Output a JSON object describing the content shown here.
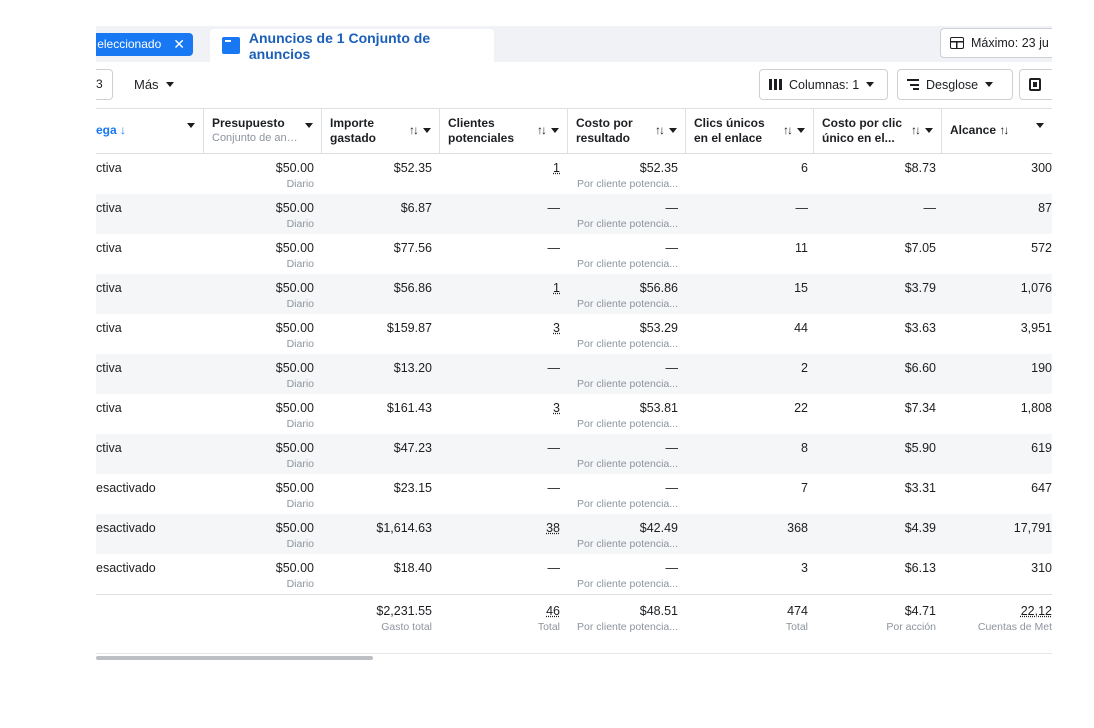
{
  "tabs": {
    "selected_label": "eleccionado",
    "ads_label": "Anuncios de 1 Conjunto de anuncios",
    "max_label": "Máximo: 23 ju"
  },
  "toolbar": {
    "num_fragment": "3",
    "more_label": "Más",
    "columns_label": "Columnas: 1",
    "breakdown_label": "Desglose"
  },
  "columns": {
    "delivery": "ega",
    "budget": "Presupuesto",
    "budget_sub": "Conjunto de anunci...",
    "spent_line1": "Importe",
    "spent_line2": "gastado",
    "leads_line1": "Clientes",
    "leads_line2": "potenciales",
    "cpr_line1": "Costo por",
    "cpr_line2": "resultado",
    "clicks_line1": "Clics únicos",
    "clicks_line2": "en el enlace",
    "cpc_line1": "Costo por clic",
    "cpc_line2": "único en el...",
    "reach": "Alcance"
  },
  "rows": [
    {
      "delivery": "ctiva",
      "budget": "$50.00",
      "budget_sub": "Diario",
      "spent": "$52.35",
      "leads": "1",
      "cpr": "$52.35",
      "cpr_sub": "Por cliente potencia...",
      "clicks": "6",
      "cpc": "$8.73",
      "reach": "300"
    },
    {
      "delivery": "ctiva",
      "budget": "$50.00",
      "budget_sub": "Diario",
      "spent": "$6.87",
      "leads": "—",
      "cpr": "—",
      "cpr_sub": "Por cliente potencia...",
      "clicks": "—",
      "cpc": "—",
      "reach": "87"
    },
    {
      "delivery": "ctiva",
      "budget": "$50.00",
      "budget_sub": "Diario",
      "spent": "$77.56",
      "leads": "—",
      "cpr": "—",
      "cpr_sub": "Por cliente potencia...",
      "clicks": "11",
      "cpc": "$7.05",
      "reach": "572"
    },
    {
      "delivery": "ctiva",
      "budget": "$50.00",
      "budget_sub": "Diario",
      "spent": "$56.86",
      "leads": "1",
      "cpr": "$56.86",
      "cpr_sub": "Por cliente potencia...",
      "clicks": "15",
      "cpc": "$3.79",
      "reach": "1,076"
    },
    {
      "delivery": "ctiva",
      "budget": "$50.00",
      "budget_sub": "Diario",
      "spent": "$159.87",
      "leads": "3",
      "cpr": "$53.29",
      "cpr_sub": "Por cliente potencia...",
      "clicks": "44",
      "cpc": "$3.63",
      "reach": "3,951"
    },
    {
      "delivery": "ctiva",
      "budget": "$50.00",
      "budget_sub": "Diario",
      "spent": "$13.20",
      "leads": "—",
      "cpr": "—",
      "cpr_sub": "Por cliente potencia...",
      "clicks": "2",
      "cpc": "$6.60",
      "reach": "190"
    },
    {
      "delivery": "ctiva",
      "budget": "$50.00",
      "budget_sub": "Diario",
      "spent": "$161.43",
      "leads": "3",
      "cpr": "$53.81",
      "cpr_sub": "Por cliente potencia...",
      "clicks": "22",
      "cpc": "$7.34",
      "reach": "1,808"
    },
    {
      "delivery": "ctiva",
      "budget": "$50.00",
      "budget_sub": "Diario",
      "spent": "$47.23",
      "leads": "—",
      "cpr": "—",
      "cpr_sub": "Por cliente potencia...",
      "clicks": "8",
      "cpc": "$5.90",
      "reach": "619"
    },
    {
      "delivery": "esactivado",
      "budget": "$50.00",
      "budget_sub": "Diario",
      "spent": "$23.15",
      "leads": "—",
      "cpr": "—",
      "cpr_sub": "Por cliente potencia...",
      "clicks": "7",
      "cpc": "$3.31",
      "reach": "647"
    },
    {
      "delivery": "esactivado",
      "budget": "$50.00",
      "budget_sub": "Diario",
      "spent": "$1,614.63",
      "leads": "38",
      "cpr": "$42.49",
      "cpr_sub": "Por cliente potencia...",
      "clicks": "368",
      "cpc": "$4.39",
      "reach": "17,791"
    },
    {
      "delivery": "esactivado",
      "budget": "$50.00",
      "budget_sub": "Diario",
      "spent": "$18.40",
      "leads": "—",
      "cpr": "—",
      "cpr_sub": "Por cliente potencia...",
      "clicks": "3",
      "cpc": "$6.13",
      "reach": "310"
    }
  ],
  "totals": {
    "spent": "$2,231.55",
    "spent_sub": "Gasto total",
    "leads": "46",
    "leads_sub": "Total",
    "cpr": "$48.51",
    "cpr_sub": "Por cliente potencia...",
    "clicks": "474",
    "clicks_sub": "Total",
    "cpc": "$4.71",
    "cpc_sub": "Por acción",
    "reach": "22,12",
    "reach_sub": "Cuentas de Met"
  }
}
